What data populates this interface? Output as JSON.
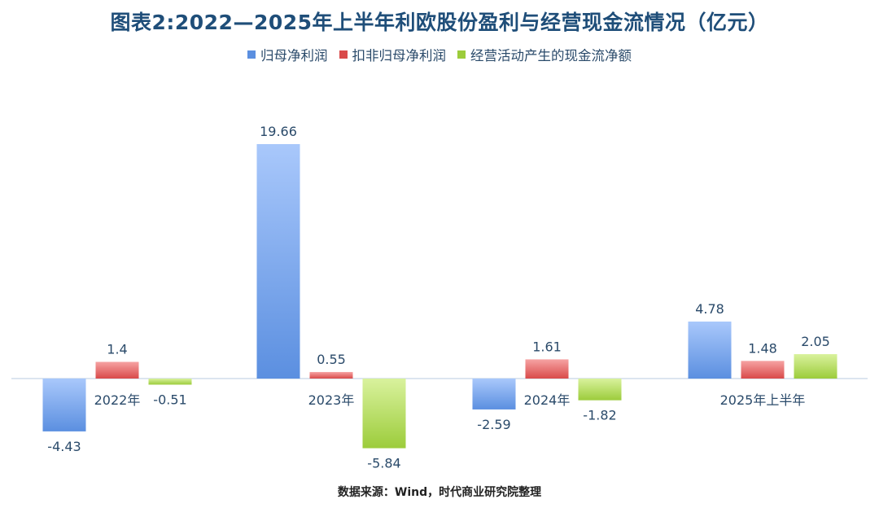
{
  "title": "图表2:2022—2025年上半年利欧股份盈利与经营现金流情况（亿元）",
  "source": "数据来源：Wind，时代商业研究院整理",
  "chart_data": {
    "type": "bar",
    "categories": [
      "2022年",
      "2023年",
      "2024年",
      "2025年上半年"
    ],
    "series": [
      {
        "name": "归母净利润",
        "values": [
          -4.43,
          19.66,
          -2.59,
          4.78
        ],
        "labels": [
          "-4.43",
          "19.66",
          "-2.59",
          "4.78"
        ],
        "color": "#5b8fe0",
        "color_light": "#a9c8fb"
      },
      {
        "name": "扣非归母净利润",
        "values": [
          1.4,
          0.55,
          1.61,
          1.48
        ],
        "labels": [
          "1.4",
          "0.55",
          "1.61",
          "1.48"
        ],
        "color": "#d94a4a",
        "color_light": "#f6a3a3"
      },
      {
        "name": "经营活动产生的现金流净额",
        "values": [
          -0.51,
          -5.84,
          -1.82,
          2.05
        ],
        "labels": [
          "-0.51",
          "-5.84",
          "-1.82",
          "2.05"
        ],
        "color": "#9ccc3b",
        "color_light": "#d9f29d"
      }
    ],
    "ylim": [
      -6.5,
      19.66
    ],
    "grid": false,
    "legend_position": "top"
  }
}
